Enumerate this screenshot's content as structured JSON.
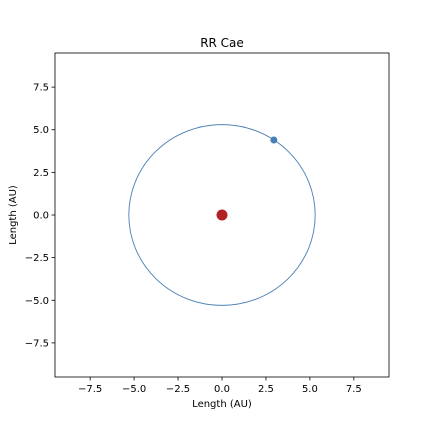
{
  "chart_data": {
    "type": "scatter",
    "title": "RR Cae",
    "xlabel": "Length (AU)",
    "ylabel": "Length (AU)",
    "xlim": [
      -9.5,
      9.5
    ],
    "ylim": [
      -9.5,
      9.5
    ],
    "x_ticks": [
      -7.5,
      -5.0,
      -2.5,
      0.0,
      2.5,
      5.0,
      7.5
    ],
    "y_ticks": [
      -7.5,
      -5.0,
      -2.5,
      0.0,
      2.5,
      5.0,
      7.5
    ],
    "x_tick_labels": [
      "−7.5",
      "−5.0",
      "−2.5",
      "0.0",
      "2.5",
      "5.0",
      "7.5"
    ],
    "y_tick_labels": [
      "−7.5",
      "−5.0",
      "−2.5",
      "0.0",
      "2.5",
      "5.0",
      "7.5"
    ],
    "grid": false,
    "orbit": {
      "center": [
        0,
        0
      ],
      "radius": 5.3,
      "color": "#4a7fb5"
    },
    "star": {
      "x": 0,
      "y": 0,
      "color": "#b22222"
    },
    "planet": {
      "x": 2.95,
      "y": 4.4,
      "color": "#4a7fb5"
    }
  }
}
